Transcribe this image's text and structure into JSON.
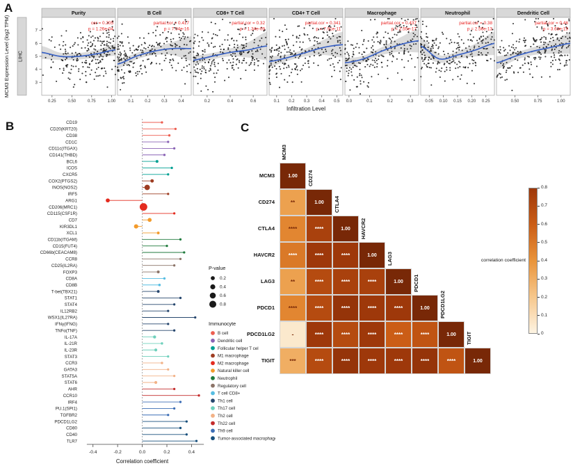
{
  "figure": {
    "panel_a_label": "A",
    "panel_b_label": "B",
    "panel_c_label": "C",
    "cohort": "LIHC"
  },
  "chart_data": [
    {
      "type": "scatter",
      "name": "immune-infiltration-correlation",
      "cohort": "LIHC",
      "xlabel": "Infiltration Level",
      "ylabel": "MCM3 Expression Level (log2 TPM)",
      "ylim": [
        2,
        8
      ],
      "yticks": [
        3,
        4,
        5,
        6,
        7
      ],
      "point_color": "#161616",
      "line_color": "#3a62c4",
      "band_color": "#8f8f8f",
      "stat_color": "#e8201f",
      "n_points": 235,
      "facets": [
        {
          "title": "Purity",
          "stat": "cor = 0.205",
          "p": "p = 1.26e-04",
          "xlim": [
            0.12,
            1.05
          ],
          "xticks": [
            "0.25",
            "0.50",
            "0.75",
            "1.00"
          ],
          "skew": 0.6,
          "trend": [
            5.3,
            5.0,
            5.0,
            5.2,
            5.5
          ],
          "band": [
            0.5,
            0.28,
            0.25,
            0.3,
            0.45
          ]
        },
        {
          "title": "B Cell",
          "stat": "partial.cor = 0.417",
          "p": "p = 7.04e-16",
          "xlim": [
            0.02,
            0.46
          ],
          "xticks": [
            "0.1",
            "0.2",
            "0.3",
            "0.4"
          ],
          "skew": 1.5,
          "trend": [
            4.4,
            5.0,
            5.4,
            5.6,
            5.6
          ],
          "band": [
            0.35,
            0.25,
            0.3,
            0.5,
            0.95
          ]
        },
        {
          "title": "CD8+ T Cell",
          "stat": "partial.cor = 0.32",
          "p": "p = 1.34e-09",
          "xlim": [
            0.08,
            0.72
          ],
          "xticks": [
            "0.2",
            "0.4",
            "0.6"
          ],
          "skew": 1.4,
          "trend": [
            4.7,
            5.0,
            5.3,
            5.5,
            5.8
          ],
          "band": [
            0.35,
            0.25,
            0.3,
            0.6,
            1.1
          ]
        },
        {
          "title": "CD4+ T Cell",
          "stat": "partial.cor = 0.341",
          "p": "p = 7.91e-11",
          "xlim": [
            0.05,
            0.54
          ],
          "xticks": [
            "0.1",
            "0.2",
            "0.3",
            "0.4",
            "0.5"
          ],
          "skew": 1.3,
          "trend": [
            4.6,
            4.9,
            5.3,
            5.7,
            5.9
          ],
          "band": [
            0.4,
            0.25,
            0.3,
            0.6,
            1.0
          ]
        },
        {
          "title": "Macrophage",
          "stat": "partial.cor = 0.437",
          "p": "p = 2.55e-17",
          "xlim": [
            -0.02,
            0.34
          ],
          "xticks": [
            "0.0",
            "0.1",
            "0.2",
            "0.3"
          ],
          "skew": 1.2,
          "trend": [
            4.5,
            4.8,
            5.4,
            5.9,
            6.2
          ],
          "band": [
            0.35,
            0.25,
            0.3,
            0.55,
            0.9
          ]
        },
        {
          "title": "Neutrophil",
          "stat": "partial.cor = 0.38",
          "p": "p = 2.56e-13",
          "xlim": [
            0.02,
            0.28
          ],
          "xticks": [
            "0.05",
            "0.10",
            "0.15",
            "0.20",
            "0.25"
          ],
          "skew": 1.5,
          "trend": [
            5.8,
            4.8,
            5.1,
            5.5,
            6.0
          ],
          "band": [
            0.7,
            0.3,
            0.3,
            0.5,
            0.9
          ]
        },
        {
          "title": "Dendritic Cell",
          "stat": "partial.cor = 0.46",
          "p": "p = 3.63e-19",
          "xlim": [
            0.3,
            1.1
          ],
          "xticks": [
            "0.50",
            "0.75",
            "1.00"
          ],
          "skew": 0.9,
          "trend": [
            4.5,
            5.0,
            5.4,
            5.7,
            6.0
          ],
          "band": [
            0.5,
            0.3,
            0.3,
            0.5,
            0.8
          ]
        }
      ]
    },
    {
      "type": "lollipop",
      "name": "immunocyte-marker-correlations",
      "xlabel": "Correlation coefficient",
      "xlim": [
        -0.5,
        0.55
      ],
      "xticks": [
        "-0.4",
        "-0.2",
        "0.0",
        "0.2",
        "0.4"
      ],
      "size_legend": {
        "title": "P-value",
        "values": [
          "0.2",
          "0.4",
          "0.6",
          "0.8"
        ]
      },
      "color_legend_title": "Immunocyte",
      "groups": [
        {
          "name": "B cell",
          "color": "#ED5E50"
        },
        {
          "name": "Dendritic cell",
          "color": "#8A63B5"
        },
        {
          "name": "Follicular helper T cel",
          "color": "#00A093"
        },
        {
          "name": "M1 macrophage",
          "color": "#9E3D22"
        },
        {
          "name": "M2 macrophage",
          "color": "#E42B1F"
        },
        {
          "name": "Natural killer cell",
          "color": "#F39B2B"
        },
        {
          "name": "Neutrophil",
          "color": "#1F7A3C"
        },
        {
          "name": "Regulatory cell",
          "color": "#8C7468"
        },
        {
          "name": "T cell CD8+",
          "color": "#56BDE2"
        },
        {
          "name": "Th1 cell",
          "color": "#27476E"
        },
        {
          "name": "Th17 cell",
          "color": "#6FD0BC"
        },
        {
          "name": "Th2 cell",
          "color": "#F2B287"
        },
        {
          "name": "Th22 cell",
          "color": "#C42B2B"
        },
        {
          "name": "Th9 cell",
          "color": "#3C6DB5"
        },
        {
          "name": "Tumor-associated macrophage",
          "color": "#174F7C"
        }
      ],
      "genes": [
        {
          "label": "CD19",
          "value": 0.16,
          "group": "B cell",
          "p": 0.02
        },
        {
          "label": "CD20(KRT20)",
          "value": 0.27,
          "group": "B cell",
          "p": 0.01
        },
        {
          "label": "CD38",
          "value": 0.22,
          "group": "B cell",
          "p": 0.01
        },
        {
          "label": "CD1C",
          "value": 0.21,
          "group": "Dendritic cell",
          "p": 0.01
        },
        {
          "label": "CD11c(ITGAX)",
          "value": 0.26,
          "group": "Dendritic cell",
          "p": 0.01
        },
        {
          "label": "CD141(THBD)",
          "value": 0.18,
          "group": "Dendritic cell",
          "p": 0.02
        },
        {
          "label": "BCL6",
          "value": 0.12,
          "group": "Follicular helper T cel",
          "p": 0.1
        },
        {
          "label": "ICOS",
          "value": 0.24,
          "group": "Follicular helper T cel",
          "p": 0.01
        },
        {
          "label": "CXCR5",
          "value": 0.21,
          "group": "Follicular helper T cel",
          "p": 0.01
        },
        {
          "label": "COX2(PTGS2)",
          "value": 0.08,
          "group": "M1 macrophage",
          "p": 0.2
        },
        {
          "label": "INOS(NOS2)",
          "value": 0.04,
          "group": "M1 macrophage",
          "p": 0.55
        },
        {
          "label": "IRF5",
          "value": 0.21,
          "group": "M1 macrophage",
          "p": 0.01
        },
        {
          "label": "ARG1",
          "value": -0.28,
          "group": "M2 macrophage",
          "p": 0.3
        },
        {
          "label": "CD206(MRC1)",
          "value": 0.01,
          "group": "M2 macrophage",
          "p": 0.92
        },
        {
          "label": "CD115(CSF1R)",
          "value": 0.26,
          "group": "M2 macrophage",
          "p": 0.01
        },
        {
          "label": "CD7",
          "value": 0.06,
          "group": "Natural killer cell",
          "p": 0.3
        },
        {
          "label": "KIR3DL1",
          "value": -0.05,
          "group": "Natural killer cell",
          "p": 0.35
        },
        {
          "label": "XCL1",
          "value": 0.13,
          "group": "Natural killer cell",
          "p": 0.08
        },
        {
          "label": "CD11b(ITGAM)",
          "value": 0.31,
          "group": "Neutrophil",
          "p": 0.01
        },
        {
          "label": "CD15(FUT4)",
          "value": 0.2,
          "group": "Neutrophil",
          "p": 0.01
        },
        {
          "label": "CD66b(CEACAM8)",
          "value": 0.34,
          "group": "Neutrophil",
          "p": 0.01
        },
        {
          "label": "CCR8",
          "value": 0.31,
          "group": "Regulatory cell",
          "p": 0.01
        },
        {
          "label": "CD25(IL2RA)",
          "value": 0.26,
          "group": "Regulatory cell",
          "p": 0.01
        },
        {
          "label": "FOXP3",
          "value": 0.13,
          "group": "Regulatory cell",
          "p": 0.1
        },
        {
          "label": "CD8A",
          "value": 0.18,
          "group": "T cell CD8+",
          "p": 0.02
        },
        {
          "label": "CD8B",
          "value": 0.14,
          "group": "T cell CD8+",
          "p": 0.05
        },
        {
          "label": "T-bet(TBX21)",
          "value": 0.13,
          "group": "Th1 cell",
          "p": 0.08
        },
        {
          "label": "STAT1",
          "value": 0.31,
          "group": "Th1 cell",
          "p": 0.01
        },
        {
          "label": "STAT4",
          "value": 0.26,
          "group": "Th1 cell",
          "p": 0.01
        },
        {
          "label": "IL12RB2",
          "value": 0.21,
          "group": "Th1 cell",
          "p": 0.01
        },
        {
          "label": "WSX1(IL27RA)",
          "value": 0.43,
          "group": "Th1 cell",
          "p": 0.01
        },
        {
          "label": "IFNγ(IFNG)",
          "value": 0.21,
          "group": "Th1 cell",
          "p": 0.01
        },
        {
          "label": "TNFα(TNF)",
          "value": 0.26,
          "group": "Th1 cell",
          "p": 0.01
        },
        {
          "label": "IL-17A",
          "value": 0.1,
          "group": "Th17 cell",
          "p": 0.15
        },
        {
          "label": "IL-21R",
          "value": 0.16,
          "group": "Th17 cell",
          "p": 0.03
        },
        {
          "label": "IL-23R",
          "value": 0.11,
          "group": "Th17 cell",
          "p": 0.12
        },
        {
          "label": "STAT3",
          "value": 0.21,
          "group": "Th17 cell",
          "p": 0.01
        },
        {
          "label": "CCR3",
          "value": 0.16,
          "group": "Th2 cell",
          "p": 0.03
        },
        {
          "label": "GATA3",
          "value": 0.21,
          "group": "Th2 cell",
          "p": 0.01
        },
        {
          "label": "STAT5A",
          "value": 0.26,
          "group": "Th2 cell",
          "p": 0.01
        },
        {
          "label": "STAT6",
          "value": 0.11,
          "group": "Th2 cell",
          "p": 0.12
        },
        {
          "label": "AHR",
          "value": 0.26,
          "group": "Th22 cell",
          "p": 0.01
        },
        {
          "label": "CCR10",
          "value": 0.46,
          "group": "Th22 cell",
          "p": 0.01
        },
        {
          "label": "IRF4",
          "value": 0.31,
          "group": "Th9 cell",
          "p": 0.01
        },
        {
          "label": "PU.1(SPI1)",
          "value": 0.26,
          "group": "Th9 cell",
          "p": 0.01
        },
        {
          "label": "TGFBR2",
          "value": 0.21,
          "group": "Th9 cell",
          "p": 0.01
        },
        {
          "label": "PDCD1LG2",
          "value": 0.36,
          "group": "Tumor-associated macrophage",
          "p": 0.01
        },
        {
          "label": "CD80",
          "value": 0.31,
          "group": "Tumor-associated macrophage",
          "p": 0.01
        },
        {
          "label": "CD40",
          "value": 0.36,
          "group": "Tumor-associated macrophage",
          "p": 0.01
        },
        {
          "label": "TLR7",
          "value": 0.44,
          "group": "Tumor-associated macrophage",
          "p": 0.01
        }
      ]
    },
    {
      "type": "heatmap",
      "name": "checkpoint-gene-correlation",
      "labels": [
        "MCM3",
        "CD274",
        "CTLA4",
        "HAVCR2",
        "LAG3",
        "PDCD1",
        "PDCD1LG2",
        "TIGIT"
      ],
      "colorbar": {
        "title": "correlation coefficient",
        "ticks": [
          "0.8",
          "0.7",
          "0.6",
          "0.5",
          "0.4",
          "0.3",
          "0.2",
          "0.1",
          "0"
        ]
      },
      "matrix": [
        [
          {
            "v": 1.0,
            "t": "1.00"
          }
        ],
        [
          {
            "v": 0.35,
            "t": "**"
          },
          {
            "v": 1.0,
            "t": "1.00"
          }
        ],
        [
          {
            "v": 0.45,
            "t": "****"
          },
          {
            "v": 0.75,
            "t": "****"
          },
          {
            "v": 1.0,
            "t": "1.00"
          }
        ],
        [
          {
            "v": 0.5,
            "t": "****"
          },
          {
            "v": 0.8,
            "t": "****"
          },
          {
            "v": 0.8,
            "t": "****"
          },
          {
            "v": 1.0,
            "t": "1.00"
          }
        ],
        [
          {
            "v": 0.35,
            "t": "**"
          },
          {
            "v": 0.7,
            "t": "****"
          },
          {
            "v": 0.75,
            "t": "****"
          },
          {
            "v": 0.75,
            "t": "****"
          },
          {
            "v": 1.0,
            "t": "1.00"
          }
        ],
        [
          {
            "v": 0.45,
            "t": "****"
          },
          {
            "v": 0.7,
            "t": "****"
          },
          {
            "v": 0.85,
            "t": "****"
          },
          {
            "v": 0.8,
            "t": "****"
          },
          {
            "v": 0.8,
            "t": "****"
          },
          {
            "v": 1.0,
            "t": "1.00"
          }
        ],
        [
          {
            "v": 0.05,
            "t": "-"
          },
          {
            "v": 0.8,
            "t": "****"
          },
          {
            "v": 0.7,
            "t": "****"
          },
          {
            "v": 0.8,
            "t": "****"
          },
          {
            "v": 0.6,
            "t": "****"
          },
          {
            "v": 0.65,
            "t": "****"
          },
          {
            "v": 1.0,
            "t": "1.00"
          }
        ],
        [
          {
            "v": 0.3,
            "t": "***"
          },
          {
            "v": 0.7,
            "t": "****"
          },
          {
            "v": 0.85,
            "t": "****"
          },
          {
            "v": 0.8,
            "t": "****"
          },
          {
            "v": 0.8,
            "t": "****"
          },
          {
            "v": 0.85,
            "t": "****"
          },
          {
            "v": 0.65,
            "t": "****"
          },
          {
            "v": 1.0,
            "t": "1.00"
          }
        ]
      ]
    }
  ]
}
